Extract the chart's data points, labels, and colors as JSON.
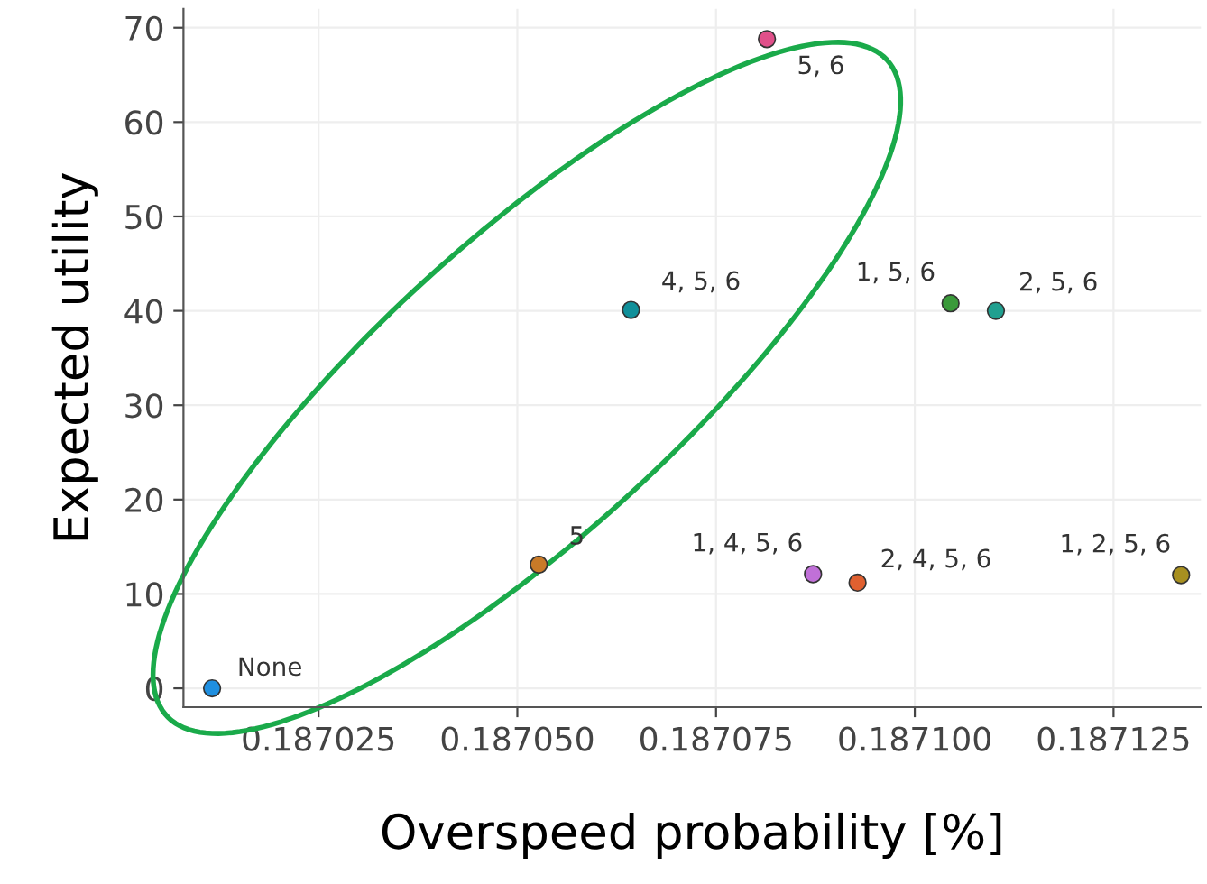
{
  "chart_data": {
    "type": "scatter",
    "xlabel": "Overspeed probability [%]",
    "ylabel": "Expected utility",
    "series": [
      {
        "x": [
          0.1870116,
          0.1870527,
          0.1870872,
          0.1870928,
          0.1871335,
          0.1870814,
          0.1870643,
          0.1871045,
          0.1871102
        ],
        "values": [
          0,
          13.1,
          12.1,
          11.2,
          12.0,
          68.8,
          40.1,
          40.8,
          40.0
        ],
        "colors": [
          "#1f8fe0",
          "#c87a28",
          "#c070d8",
          "#e06030",
          "#a89020",
          "#e0508a",
          "#10909a",
          "#3a9a3a",
          "#20a090"
        ]
      }
    ],
    "annotations": [
      {
        "text": "None",
        "x": 0.1870116,
        "y": 0
      },
      {
        "text": "5",
        "x": 0.1870527,
        "y": 13.1
      },
      {
        "text": "1, 4, 5, 6",
        "x": 0.1870872,
        "y": 12.1
      },
      {
        "text": "2, 4, 5, 6",
        "x": 0.1870928,
        "y": 11.2
      },
      {
        "text": "1, 2, 5, 6",
        "x": 0.1871335,
        "y": 12.0
      },
      {
        "text": "5, 6",
        "x": 0.1870814,
        "y": 68.8
      },
      {
        "text": "4, 5, 6",
        "x": 0.1870643,
        "y": 40.1
      },
      {
        "text": "1, 5, 6",
        "x": 0.1871045,
        "y": 40.8
      },
      {
        "text": "2, 5, 6",
        "x": 0.1871102,
        "y": 40.0
      }
    ],
    "xlim": [
      0.187008,
      0.187136
    ],
    "ylim": [
      -2,
      72
    ],
    "xticks": [
      0.187025,
      {
        "value": 0.18705,
        "label": "0.187050"
      },
      0.187075,
      {
        "value": 0.1871,
        "label": "0.187100"
      },
      0.187125
    ],
    "yticks": [
      0,
      10,
      20,
      30,
      40,
      50,
      60,
      70
    ],
    "grid": true,
    "marker": "circle"
  }
}
